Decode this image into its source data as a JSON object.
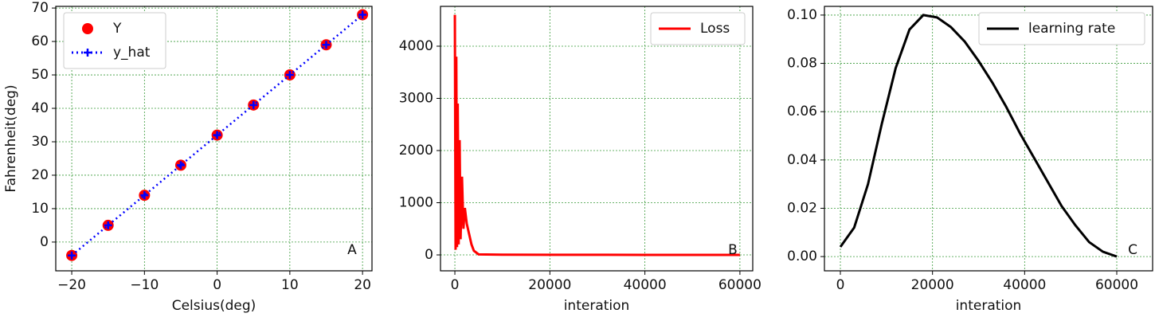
{
  "chart_data": [
    {
      "type": "line",
      "xlabel": "Celsius(deg)",
      "ylabel": "Fahrenheit(deg)",
      "annotation": "A",
      "x": [
        -20,
        -15,
        -10,
        -5,
        0,
        5,
        10,
        15,
        20
      ],
      "series": [
        {
          "name": "Y",
          "color": "#ff0000",
          "marker": "circle",
          "line": null,
          "values": [
            -4,
            5,
            14,
            23,
            32,
            41,
            50,
            59,
            68
          ]
        },
        {
          "name": "y_hat",
          "color": "#0000ff",
          "marker": "plus",
          "line": "dotted",
          "values": [
            -4,
            5,
            14,
            23,
            32,
            41,
            50,
            59,
            68
          ]
        }
      ],
      "xlim": [
        -22.2,
        21.3
      ],
      "ylim": [
        -8.6,
        70.5
      ],
      "xticks": [
        {
          "value": -20,
          "label": "−20"
        },
        {
          "value": -10,
          "label": "−10"
        },
        0,
        10,
        20
      ],
      "yticks": [
        0,
        10,
        20,
        30,
        40,
        50,
        60,
        70
      ],
      "grid": true,
      "legend": "upper left"
    },
    {
      "type": "line",
      "xlabel": "interation",
      "annotation": "B",
      "x": [
        0,
        150,
        300,
        450,
        600,
        800,
        1000,
        1200,
        1500,
        1800,
        2100,
        2500,
        3000,
        3500,
        4000,
        5000,
        10000,
        20000,
        30000,
        40000,
        50000,
        60000
      ],
      "series": [
        {
          "name": "Loss",
          "color": "#ff0000",
          "marker": null,
          "line": "solid",
          "values": [
            4600,
            100,
            3800,
            150,
            2900,
            200,
            2200,
            300,
            1500,
            500,
            900,
            600,
            400,
            200,
            80,
            10,
            5,
            3,
            2,
            1,
            1,
            1
          ]
        }
      ],
      "xlim": [
        -3025,
        62700
      ],
      "ylim": [
        -305,
        4763
      ],
      "xticks": [
        0,
        20000,
        40000,
        60000
      ],
      "yticks": [
        0,
        1000,
        2000,
        3000,
        4000
      ],
      "grid": true,
      "legend": "upper right"
    },
    {
      "type": "line",
      "xlabel": "interation",
      "annotation": "C",
      "x": [
        0,
        3000,
        6000,
        9000,
        12000,
        15000,
        18000,
        21000,
        24000,
        27000,
        30000,
        33000,
        36000,
        39000,
        42000,
        45000,
        48000,
        51000,
        54000,
        57000,
        60000
      ],
      "series": [
        {
          "name": "learning rate",
          "color": "#000000",
          "marker": null,
          "line": "solid",
          "values": [
            0.004,
            0.012,
            0.03,
            0.055,
            0.078,
            0.094,
            0.1,
            0.099,
            0.095,
            0.089,
            0.081,
            0.072,
            0.062,
            0.051,
            0.041,
            0.031,
            0.021,
            0.013,
            0.006,
            0.002,
            0.0
          ]
        }
      ],
      "xlim": [
        -3460,
        67780
      ],
      "ylim": [
        -0.0059,
        0.1036
      ],
      "xticks": [
        0,
        20000,
        40000,
        60000
      ],
      "yticks": [
        {
          "value": 0,
          "label": "0.00"
        },
        {
          "value": 0.02,
          "label": "0.02"
        },
        {
          "value": 0.04,
          "label": "0.04"
        },
        {
          "value": 0.06,
          "label": "0.06"
        },
        {
          "value": 0.08,
          "label": "0.08"
        },
        {
          "value": 0.1,
          "label": "0.10"
        }
      ],
      "grid": true,
      "legend": "upper right"
    }
  ]
}
